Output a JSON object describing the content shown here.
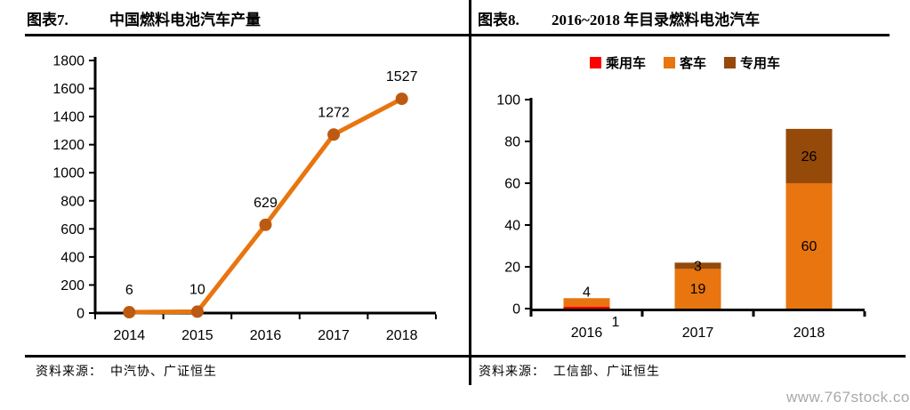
{
  "left_panel": {
    "title_label": "图表7.",
    "title": "中国燃料电池汽车产量",
    "source_prefix": "资料来源：",
    "source": "中汽协、广证恒生"
  },
  "right_panel": {
    "title_label": "图表8.",
    "title": "2016~2018 年目录燃料电池汽车",
    "source_prefix": "资料来源：",
    "source": "工信部、广证恒生"
  },
  "watermark": "www.767stock.com",
  "colors": {
    "line_orange": "#E8750F",
    "marker_dark_orange": "#BC5A12",
    "passenger_red": "#FE0000",
    "bus_orange": "#E8750F",
    "special_brown": "#954A0A",
    "axis_black": "#000000",
    "watermark_gray": "#A9A9A9"
  },
  "chart_data": [
    {
      "type": "line",
      "title": "中国燃料电池汽车产量",
      "categories": [
        "2014",
        "2015",
        "2016",
        "2017",
        "2018"
      ],
      "series": [
        {
          "name": "中国燃料电池汽车产量",
          "values": [
            6,
            10,
            629,
            1272,
            1527
          ]
        }
      ],
      "data_labels": [
        "6",
        "10",
        "629",
        "1272",
        "1527"
      ],
      "xlabel": "",
      "ylabel": "",
      "ylim": [
        0,
        1800
      ],
      "ytick_step": 200,
      "grid": false,
      "legend_position": "none",
      "line_color": "#E8750F",
      "marker_color": "#BC5A12"
    },
    {
      "type": "bar",
      "stacked": true,
      "title": "2016~2018 年目录燃料电池汽车",
      "categories": [
        "2016",
        "2017",
        "2018"
      ],
      "series": [
        {
          "name": "乘用车",
          "color": "#FE0000",
          "values": [
            1,
            0,
            0
          ]
        },
        {
          "name": "客车",
          "color": "#E8750F",
          "values": [
            4,
            19,
            60
          ]
        },
        {
          "name": "专用车",
          "color": "#954A0A",
          "values": [
            0,
            3,
            26
          ]
        }
      ],
      "xlabel": "",
      "ylabel": "",
      "ylim": [
        0,
        100
      ],
      "ytick_step": 20,
      "grid": false,
      "legend_position": "top"
    }
  ]
}
